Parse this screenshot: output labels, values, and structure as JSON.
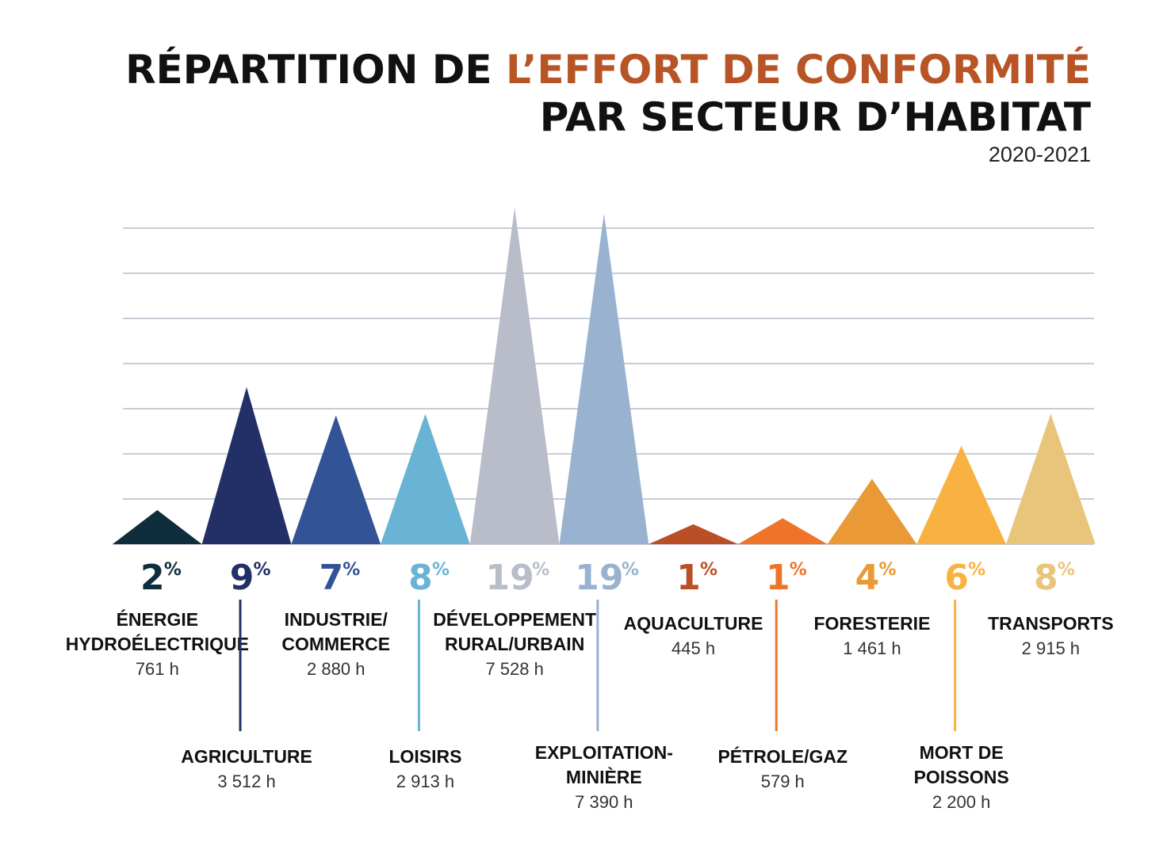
{
  "chart_data": {
    "type": "bar",
    "title": {
      "part1": "RÉPARTITION DE ",
      "accent": "L’EFFORT DE CONFORMITÉ",
      "line2": "PAR SECTEUR D’HABITAT"
    },
    "subtitle": "2020-2021",
    "ylim": [
      0,
      7.5
    ],
    "grid": true,
    "grid_lines": 7,
    "categories": [
      {
        "label_lines": [
          "ÉNERGIE",
          "HYDROÉLECTRIQUE"
        ],
        "hours": "761 h",
        "value": 761,
        "percent": "2",
        "color": "#0f2d3d",
        "label_row": "top"
      },
      {
        "label_lines": [
          "AGRICULTURE"
        ],
        "hours": "3 512 h",
        "value": 3512,
        "percent": "9",
        "color": "#233067",
        "label_row": "bottom"
      },
      {
        "label_lines": [
          "INDUSTRIE/",
          "COMMERCE"
        ],
        "hours": "2 880 h",
        "value": 2880,
        "percent": "7",
        "color": "#325497",
        "label_row": "top"
      },
      {
        "label_lines": [
          "LOISIRS"
        ],
        "hours": "2 913 h",
        "value": 2913,
        "percent": "8",
        "color": "#69b3d4",
        "label_row": "bottom"
      },
      {
        "label_lines": [
          "DÉVELOPPEMENT",
          "RURAL/URBAIN"
        ],
        "hours": "7 528 h",
        "value": 7528,
        "percent": "19",
        "color": "#b9bdca",
        "label_row": "top"
      },
      {
        "label_lines": [
          "EXPLOITATION-",
          "MINIÈRE"
        ],
        "hours": "7 390 h",
        "value": 7390,
        "percent": "19",
        "color": "#98b2d0",
        "label_row": "bottom"
      },
      {
        "label_lines": [
          "AQUACULTURE"
        ],
        "hours": "445 h",
        "value": 445,
        "percent": "1",
        "color": "#b94e27",
        "label_row": "top"
      },
      {
        "label_lines": [
          "PÉTROLE/GAZ"
        ],
        "hours": "579 h",
        "value": 579,
        "percent": "1",
        "color": "#ef7428",
        "label_row": "bottom"
      },
      {
        "label_lines": [
          "FORESTERIE"
        ],
        "hours": "1 461 h",
        "value": 1461,
        "percent": "4",
        "color": "#e99a36",
        "label_row": "top"
      },
      {
        "label_lines": [
          "MORT DE",
          "POISSONS"
        ],
        "hours": "2 200 h",
        "value": 2200,
        "percent": "6",
        "color": "#f9b141",
        "label_row": "bottom"
      },
      {
        "label_lines": [
          "TRANSPORTS"
        ],
        "hours": "2 915 h",
        "value": 2915,
        "percent": "8",
        "color": "#e8c57a",
        "label_row": "top"
      }
    ],
    "percent_symbol": "%"
  }
}
